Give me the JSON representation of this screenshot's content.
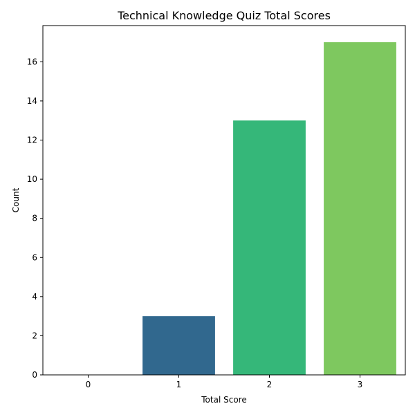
{
  "chart_data": {
    "type": "bar",
    "title": "Technical Knowledge Quiz Total Scores",
    "xlabel": "Total Score",
    "ylabel": "Count",
    "categories": [
      "0",
      "1",
      "2",
      "3"
    ],
    "values": [
      0,
      3,
      13,
      17
    ],
    "colors": [
      "#440154",
      "#31688e",
      "#35b779",
      "#7ec85f"
    ],
    "ylim": [
      0,
      17.85
    ],
    "yticks": [
      0,
      2,
      4,
      6,
      8,
      10,
      12,
      14,
      16
    ],
    "grid": false,
    "legend": "none"
  }
}
